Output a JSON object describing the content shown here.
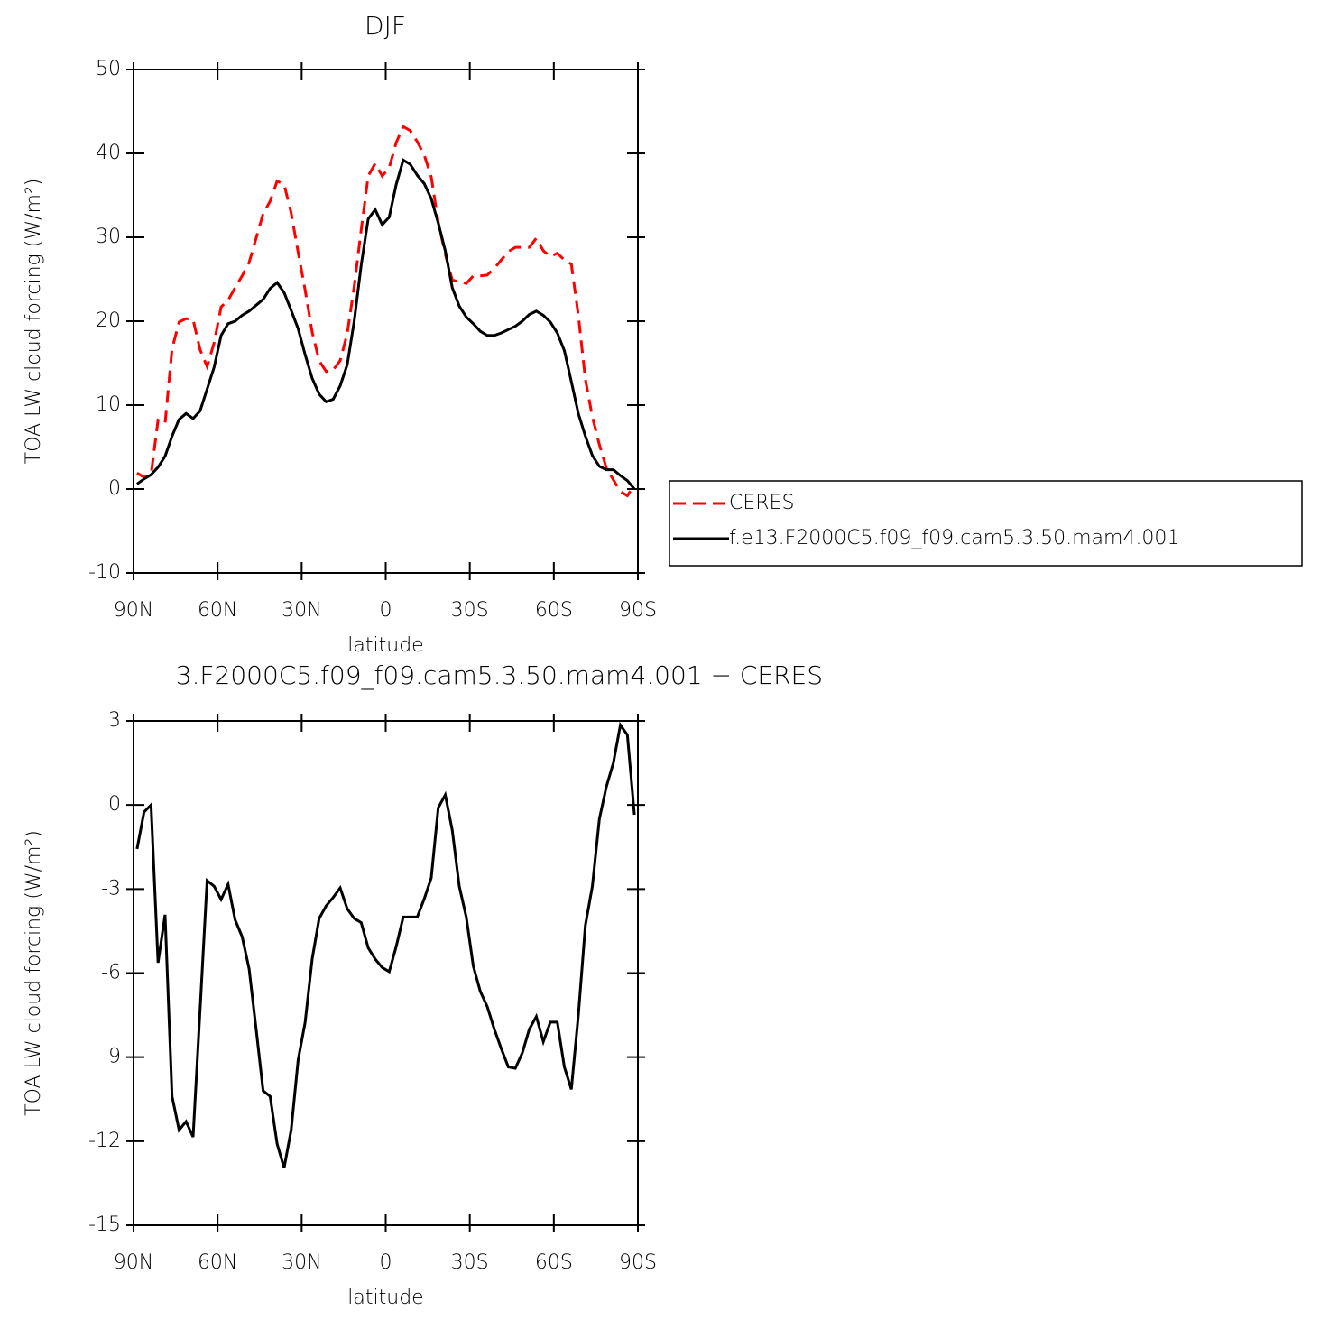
{
  "chart_data": [
    {
      "type": "line",
      "title": "DJF",
      "x_label": "latitude",
      "y_label": "TOA LW cloud forcing (W/m²)",
      "x": [
        88.75,
        86.25,
        83.75,
        81.25,
        78.75,
        76.25,
        73.75,
        71.25,
        68.75,
        66.25,
        63.75,
        61.25,
        58.75,
        56.25,
        53.75,
        51.25,
        48.75,
        46.25,
        43.75,
        41.25,
        38.75,
        36.25,
        33.75,
        31.25,
        28.75,
        26.25,
        23.75,
        21.25,
        18.75,
        16.25,
        13.75,
        11.25,
        8.75,
        6.25,
        3.75,
        1.25,
        -1.25,
        -3.75,
        -6.25,
        -8.75,
        -11.25,
        -13.75,
        -16.25,
        -18.75,
        -21.25,
        -23.75,
        -26.25,
        -28.75,
        -31.25,
        -33.75,
        -36.25,
        -38.75,
        -41.25,
        -43.75,
        -46.25,
        -48.75,
        -51.25,
        -53.75,
        -56.25,
        -58.75,
        -61.25,
        -63.75,
        -66.25,
        -68.75,
        -71.25,
        -73.75,
        -76.25,
        -78.75,
        -81.25,
        -83.75,
        -86.25,
        -88.75
      ],
      "series": [
        {
          "name": "CERES",
          "color": "#ff0000",
          "style": "dashed",
          "values": [
            1.9,
            1.4,
            1.7,
            8.2,
            7.8,
            16.7,
            19.9,
            20.3,
            20.2,
            16.6,
            14.6,
            17.4,
            21.7,
            22.5,
            24.0,
            25.4,
            27.0,
            29.9,
            32.8,
            34.3,
            36.7,
            36.3,
            32.9,
            28.2,
            23.7,
            18.7,
            15.3,
            14.0,
            14.2,
            15.3,
            18.5,
            24.1,
            30.9,
            37.3,
            38.8,
            37.3,
            38.3,
            41.3,
            43.2,
            42.7,
            41.4,
            39.8,
            37.2,
            31.8,
            28.0,
            24.9,
            24.7,
            24.5,
            25.4,
            25.4,
            25.5,
            26.3,
            27.3,
            28.3,
            28.8,
            28.8,
            28.8,
            29.9,
            28.4,
            27.7,
            28.1,
            27.3,
            26.8,
            20.7,
            13.1,
            8.6,
            5.3,
            2.5,
            1.1,
            -0.3,
            -0.8,
            0.5
          ]
        },
        {
          "name": "f.e13.F2000C5.f09_f09.cam5.3.50.mam4.001",
          "color": "#000000",
          "style": "solid",
          "values": [
            0.6,
            1.2,
            1.7,
            2.6,
            3.9,
            6.3,
            8.3,
            9.0,
            8.4,
            9.3,
            11.9,
            14.5,
            18.3,
            19.7,
            20.0,
            20.7,
            21.2,
            21.9,
            22.6,
            23.9,
            24.6,
            23.4,
            21.3,
            19.1,
            16.0,
            13.2,
            11.3,
            10.4,
            10.7,
            12.3,
            14.8,
            20.0,
            26.7,
            32.2,
            33.3,
            31.5,
            32.4,
            36.3,
            39.2,
            38.7,
            37.4,
            36.4,
            34.6,
            31.7,
            28.4,
            24.0,
            21.8,
            20.5,
            19.7,
            18.8,
            18.3,
            18.3,
            18.6,
            19.0,
            19.4,
            20.0,
            20.8,
            21.2,
            20.7,
            19.9,
            18.6,
            16.5,
            12.8,
            9.0,
            6.3,
            4.0,
            2.7,
            2.3,
            2.3,
            1.6,
            1.0,
            0.0
          ]
        }
      ],
      "xlim": [
        90,
        -90
      ],
      "ylim": [
        -10,
        50
      ],
      "xticks": [
        {
          "value": 90,
          "label": "90N"
        },
        {
          "value": 60,
          "label": "60N"
        },
        {
          "value": 30,
          "label": "30N"
        },
        0,
        {
          "value": -30,
          "label": "30S"
        },
        {
          "value": -60,
          "label": "60S"
        },
        {
          "value": -90,
          "label": "90S"
        }
      ],
      "yticks": [
        -10,
        0,
        10,
        20,
        30,
        40,
        50
      ],
      "legend": "right"
    },
    {
      "type": "line",
      "title": "3.F2000C5.f09_f09.cam5.3.50.mam4.001 − CERES",
      "x_label": "latitude",
      "y_label": "TOA LW cloud forcing (W/m²)",
      "x": [
        88.75,
        86.25,
        83.75,
        81.25,
        78.75,
        76.25,
        73.75,
        71.25,
        68.75,
        66.25,
        63.75,
        61.25,
        58.75,
        56.25,
        53.75,
        51.25,
        48.75,
        46.25,
        43.75,
        41.25,
        38.75,
        36.25,
        33.75,
        31.25,
        28.75,
        26.25,
        23.75,
        21.25,
        18.75,
        16.25,
        13.75,
        11.25,
        8.75,
        6.25,
        3.75,
        1.25,
        -1.25,
        -3.75,
        -6.25,
        -8.75,
        -11.25,
        -13.75,
        -16.25,
        -18.75,
        -21.25,
        -23.75,
        -26.25,
        -28.75,
        -31.25,
        -33.75,
        -36.25,
        -38.75,
        -41.25,
        -43.75,
        -46.25,
        -48.75,
        -51.25,
        -53.75,
        -56.25,
        -58.75,
        -61.25,
        -63.75,
        -66.25,
        -68.75,
        -71.25,
        -73.75,
        -76.25,
        -78.75,
        -81.25,
        -83.75,
        -86.25,
        -88.75
      ],
      "color": "#000000",
      "values": [
        -1.57,
        -0.25,
        0.0,
        -5.63,
        -3.92,
        -10.4,
        -11.6,
        -11.3,
        -11.85,
        -7.3,
        -2.7,
        -2.9,
        -3.37,
        -2.83,
        -4.1,
        -4.7,
        -5.85,
        -8.0,
        -10.2,
        -10.4,
        -12.1,
        -12.95,
        -11.6,
        -9.1,
        -7.75,
        -5.5,
        -4.05,
        -3.6,
        -3.3,
        -2.96,
        -3.7,
        -4.05,
        -4.2,
        -5.1,
        -5.5,
        -5.8,
        -5.95,
        -5.05,
        -4.0,
        -4.0,
        -4.0,
        -3.35,
        -2.6,
        -0.1,
        0.36,
        -0.9,
        -2.9,
        -4.0,
        -5.75,
        -6.65,
        -7.2,
        -8.0,
        -8.7,
        -9.35,
        -9.4,
        -8.85,
        -8.0,
        -7.55,
        -8.45,
        -7.75,
        -7.75,
        -9.35,
        -10.15,
        -7.5,
        -4.3,
        -2.9,
        -0.5,
        0.65,
        1.5,
        2.85,
        2.5,
        -0.35
      ],
      "xlim": [
        90,
        -90
      ],
      "ylim": [
        -15,
        3
      ],
      "xticks": [
        {
          "value": 90,
          "label": "90N"
        },
        {
          "value": 60,
          "label": "60N"
        },
        {
          "value": 30,
          "label": "30N"
        },
        0,
        {
          "value": -30,
          "label": "30S"
        },
        {
          "value": -60,
          "label": "60S"
        },
        {
          "value": -90,
          "label": "90S"
        }
      ],
      "yticks": [
        -15,
        -12,
        -9,
        -6,
        -3,
        0,
        3
      ]
    }
  ]
}
